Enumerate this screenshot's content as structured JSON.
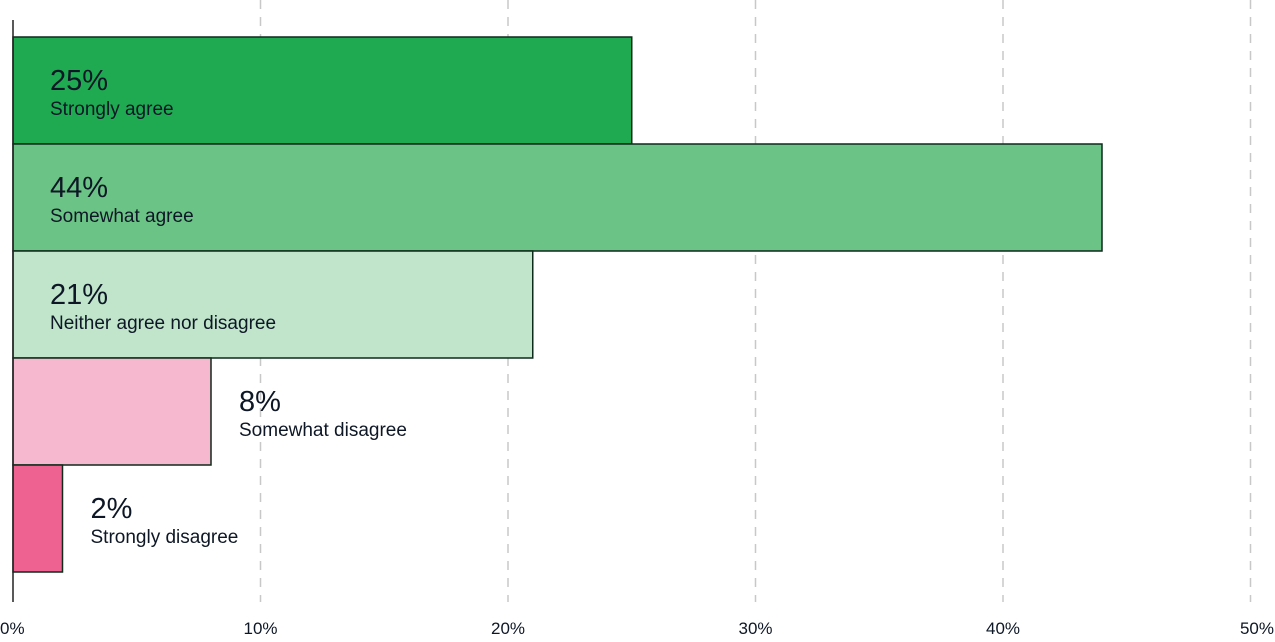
{
  "chart_data": {
    "type": "bar",
    "orientation": "horizontal",
    "categories": [
      "Strongly agree",
      "Somewhat agree",
      "Neither agree nor disagree",
      "Somewhat disagree",
      "Strongly disagree"
    ],
    "values": [
      25,
      44,
      21,
      8,
      2
    ],
    "value_labels": [
      "25%",
      "44%",
      "21%",
      "8%",
      "2%"
    ],
    "colors": [
      "#1faa52",
      "#6cc386",
      "#c0e5cb",
      "#f5b8ce",
      "#ee6291"
    ],
    "xlim": [
      0,
      50
    ],
    "x_ticks": [
      0,
      10,
      20,
      30,
      40,
      50
    ],
    "x_tick_labels": [
      "0%",
      "10%",
      "20%",
      "30%",
      "40%",
      "50%"
    ],
    "grid": "vertical dashed",
    "legend": "none",
    "title": "",
    "xlabel": "",
    "ylabel": ""
  }
}
